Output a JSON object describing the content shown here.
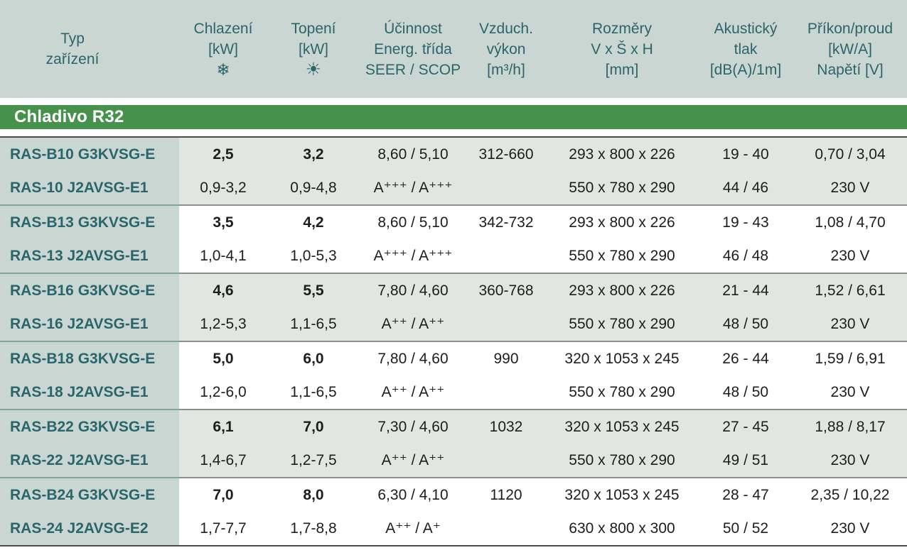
{
  "colors": {
    "header_bg": "#cad6d2",
    "tinted_row_bg": "#e0e7e3",
    "white_row_bg": "#ffffff",
    "banner_green": "#46924c",
    "header_text": "#2b646b",
    "model_text": "#29666c",
    "value_text": "#1d1d1b",
    "separator_gray": "#8d8d8d",
    "separator_teal": "#7fa69f",
    "heavy_rule": "#4b4b4b"
  },
  "table": {
    "header": {
      "columns": [
        {
          "lines": [
            "Typ",
            "zařízení"
          ]
        },
        {
          "lines": [
            "Chlazení",
            "[kW]"
          ],
          "icon": "❄"
        },
        {
          "lines": [
            "Topení",
            "[kW]"
          ],
          "icon": "☀"
        },
        {
          "lines": [
            "Účinnost",
            "Energ. třída",
            "SEER / SCOP"
          ]
        },
        {
          "lines": [
            "Vzduch.",
            "výkon",
            "[m³/h]"
          ]
        },
        {
          "lines": [
            "Rozměry",
            "V x Š x H",
            "[mm]"
          ]
        },
        {
          "lines": [
            "Akustický",
            "tlak",
            "[dB(A)/1m]"
          ]
        },
        {
          "lines": [
            "Příkon/proud",
            "[kW/A]",
            "Napětí [V]"
          ]
        }
      ]
    },
    "section": {
      "label": "Chladivo R32"
    },
    "groups": [
      {
        "rows": [
          {
            "cells": [
              "RAS-B10 G3KVSG-E",
              "2,5",
              "3,2",
              "8,60 / 5,10",
              "312-660",
              "293 x 800 x 226",
              "19 - 40",
              "0,70 / 3,04"
            ]
          },
          {
            "cells": [
              "RAS-10 J2AVSG-E1",
              "0,9-3,2",
              "0,9-4,8",
              "A⁺⁺⁺ / A⁺⁺⁺",
              "",
              "550 x 780 x 290",
              "44 / 46",
              "230 V"
            ]
          }
        ]
      },
      {
        "rows": [
          {
            "cells": [
              "RAS-B13 G3KVSG-E",
              "3,5",
              "4,2",
              "8,60 / 5,10",
              "342-732",
              "293 x 800 x 226",
              "19 - 43",
              "1,08 / 4,70"
            ]
          },
          {
            "cells": [
              "RAS-13 J2AVSG-E1",
              "1,0-4,1",
              "1,0-5,3",
              "A⁺⁺⁺ / A⁺⁺⁺",
              "",
              "550 x 780 x 290",
              "46 / 48",
              "230 V"
            ]
          }
        ]
      },
      {
        "rows": [
          {
            "cells": [
              "RAS-B16 G3KVSG-E",
              "4,6",
              "5,5",
              "7,80 / 4,60",
              "360-768",
              "293 x 800 x 226",
              "21 - 44",
              "1,52 / 6,61"
            ]
          },
          {
            "cells": [
              "RAS-16 J2AVSG-E1",
              "1,2-5,3",
              "1,1-6,5",
              "A⁺⁺ / A⁺⁺",
              "",
              "550 x 780 x 290",
              "48 / 50",
              "230 V"
            ]
          }
        ]
      },
      {
        "rows": [
          {
            "cells": [
              "RAS-B18 G3KVSG-E",
              "5,0",
              "6,0",
              "7,80 / 4,60",
              "990",
              "320 x 1053 x 245",
              "26 - 44",
              "1,59 / 6,91"
            ]
          },
          {
            "cells": [
              "RAS-18 J2AVSG-E1",
              "1,2-6,0",
              "1,1-6,5",
              "A⁺⁺ / A⁺⁺",
              "",
              "550 x 780 x 290",
              "48 / 50",
              "230 V"
            ]
          }
        ]
      },
      {
        "rows": [
          {
            "cells": [
              "RAS-B22 G3KVSG-E",
              "6,1",
              "7,0",
              "7,30 / 4,60",
              "1032",
              "320 x 1053 x 245",
              "27 - 45",
              "1,88 / 8,17"
            ]
          },
          {
            "cells": [
              "RAS-22 J2AVSG-E1",
              "1,4-6,7",
              "1,2-7,5",
              "A⁺⁺ / A⁺⁺",
              "",
              "550 x 780 x 290",
              "49 / 51",
              "230 V"
            ]
          }
        ]
      },
      {
        "rows": [
          {
            "cells": [
              "RAS-B24 G3KVSG-E",
              "7,0",
              "8,0",
              "6,30 / 4,10",
              "1120",
              "320 x 1053 x 245",
              "28 - 47",
              "2,35 / 10,22"
            ]
          },
          {
            "cells": [
              "RAS-24 J2AVSG-E2",
              "1,7-7,7",
              "1,7-8,8",
              "A⁺⁺ / A⁺",
              "",
              "630 x 800 x 300",
              "50 / 52",
              "230 V"
            ]
          }
        ]
      }
    ]
  }
}
